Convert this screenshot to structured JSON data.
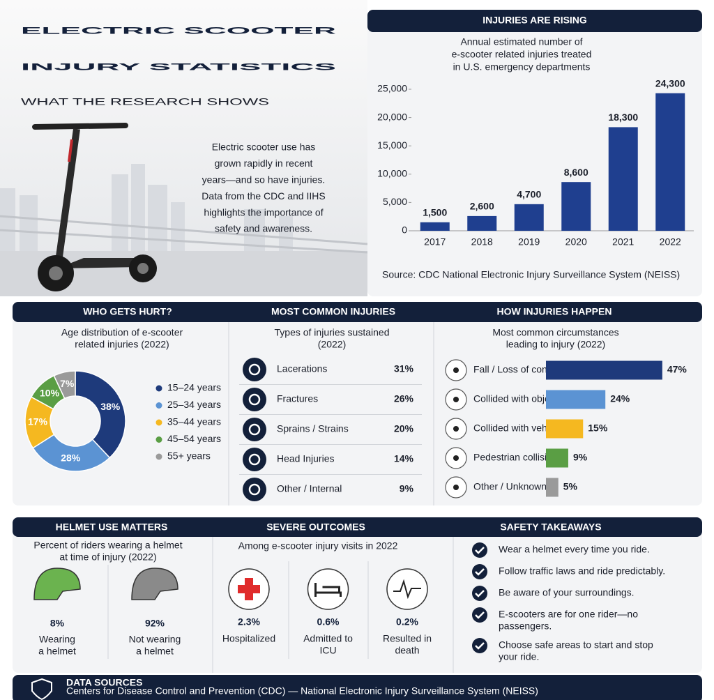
{
  "header": {
    "title": [
      "ELECTRIC SCOOTER",
      "INJURY STATISTICS"
    ],
    "subtitle": "WHAT THE RESEARCH SHOWS",
    "intro": [
      "Electric scooter use has",
      "grown rapidly in recent",
      "years—and so have injuries.",
      "Data from the CDC and IIHS",
      "highlights the importance of",
      "safety and awareness."
    ]
  },
  "chart_data": [
    {
      "type": "bar",
      "title": "INJURIES ARE RISING",
      "subtitle": [
        "Annual estimated number of",
        "e-scooter related injuries treated",
        "in U.S. emergency departments"
      ],
      "categories": [
        "2017",
        "2018",
        "2019",
        "2020",
        "2021",
        "2022"
      ],
      "values": [
        1500,
        2600,
        4700,
        8600,
        18300,
        24300
      ],
      "value_labels": [
        "1,500",
        "2,600",
        "4,700",
        "8,600",
        "18,300",
        "24,300"
      ],
      "color": "#1f3f8f",
      "ylim": [
        0,
        25000
      ],
      "yticks": [
        0,
        {
          "value": 5000,
          "label": "5,000"
        },
        {
          "value": 10000,
          "label": "10,000"
        },
        {
          "value": 15000,
          "label": "15,000"
        },
        {
          "value": 20000,
          "label": "20,000"
        },
        {
          "value": 25000,
          "label": "25,000"
        }
      ],
      "source": "Source: CDC National Electronic Injury Surveillance System (NEISS)"
    },
    {
      "type": "donut",
      "title": "WHO GETS HURT?",
      "subtitle": [
        "Age distribution of e-scooter",
        "related injuries (2022)"
      ],
      "categories": [
        "15–24 years",
        "25–34 years",
        "35–44 years",
        "45–54 years",
        "55+ years"
      ],
      "values": [
        38,
        28,
        17,
        10,
        7
      ],
      "value_labels": [
        "38%",
        "28%",
        "17%",
        "10%",
        "7%"
      ],
      "colors": [
        "#1e3a7b",
        "#5b93d3",
        "#f5b820",
        "#5a9e44",
        "#9a9a9a"
      ]
    },
    {
      "type": "bar",
      "orientation": "horizontal",
      "title": "HOW INJURIES HAPPEN",
      "subtitle": [
        "Most common circumstances",
        "leading to injury (2022)"
      ],
      "categories": [
        "Fall / Loss of control",
        "Collided with object",
        "Collided with vehicle",
        "Pedestrian collision",
        "Other / Unknown"
      ],
      "values": [
        47,
        24,
        15,
        9,
        5
      ],
      "value_labels": [
        "47%",
        "24%",
        "15%",
        "9%",
        "5%"
      ],
      "colors": [
        "#1e3a7b",
        "#5b93d3",
        "#f5b820",
        "#5a9e44",
        "#9a9a9a"
      ]
    }
  ],
  "injuries": {
    "title": "MOST COMMON INJURIES",
    "subtitle": [
      "Types of injuries sustained",
      "(2022)"
    ],
    "rows": [
      [
        "Lacerations",
        "31%"
      ],
      [
        "Fractures",
        "26%"
      ],
      [
        "Sprains / Strains",
        "20%"
      ],
      [
        "Head Injuries",
        "14%"
      ],
      [
        "Other / Internal",
        "9%"
      ]
    ]
  },
  "helmet": {
    "title": "HELMET USE MATTERS",
    "subtitle": [
      "Percent of riders wearing a helmet",
      "at time of injury (2022)"
    ],
    "items": [
      {
        "value": "8%",
        "label": [
          "Wearing",
          "a helmet"
        ]
      },
      {
        "value": "92%",
        "label": [
          "Not wearing",
          "a helmet"
        ]
      }
    ]
  },
  "outcomes": {
    "title": "SEVERE OUTCOMES",
    "subtitle": "Among e-scooter injury visits in 2022",
    "items": [
      {
        "value": "2.3%",
        "label": [
          "Hospitalized"
        ]
      },
      {
        "value": "0.6%",
        "label": [
          "Admitted to",
          "ICU"
        ]
      },
      {
        "value": "0.2%",
        "label": [
          "Resulted in",
          "death"
        ]
      }
    ]
  },
  "takeaways": {
    "title": "SAFETY TAKEAWAYS",
    "items": [
      [
        "Wear a helmet every time you ride."
      ],
      [
        "Follow traffic laws and ride predictably."
      ],
      [
        "Be aware of your surroundings."
      ],
      [
        "E-scooters are for one rider—no",
        "passengers."
      ],
      [
        "Choose safe areas to start and stop",
        "your ride."
      ]
    ]
  },
  "sources": {
    "title": "DATA SOURCES",
    "lines": [
      "Centers for Disease Control and Prevention (CDC) — National Electronic Injury Surveillance System (NEISS)"
    ]
  }
}
